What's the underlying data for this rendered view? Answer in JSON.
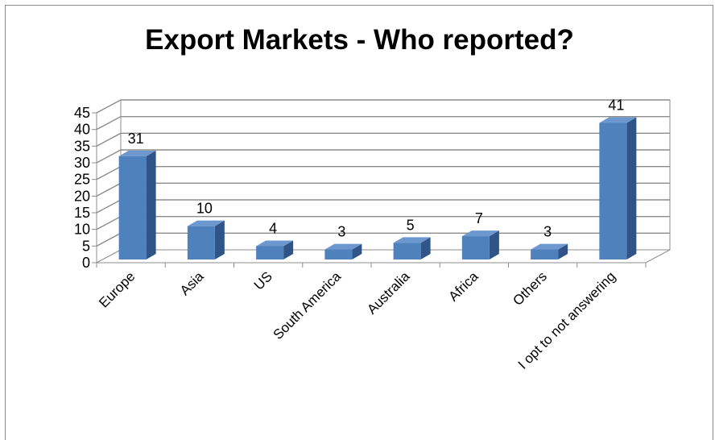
{
  "chart_data": {
    "type": "bar",
    "title": "Export Markets - Who reported?",
    "categories": [
      "Europe",
      "Asia",
      "US",
      "South America",
      "Australia",
      "Africa",
      "Others",
      "I opt to not answering"
    ],
    "values": [
      31,
      10,
      4,
      3,
      5,
      7,
      3,
      41
    ],
    "ylim": [
      0,
      45
    ],
    "yticks": [
      "0",
      "5",
      "10",
      "15",
      "20",
      "25",
      "30",
      "35",
      "40",
      "45"
    ],
    "xlabel": "",
    "ylabel": "",
    "grid": true,
    "legend": "none",
    "style": "3d-column",
    "colors": {
      "bar_front": "#4f81bd",
      "bar_side": "#2f5487",
      "bar_top": "#6c97cf"
    }
  }
}
